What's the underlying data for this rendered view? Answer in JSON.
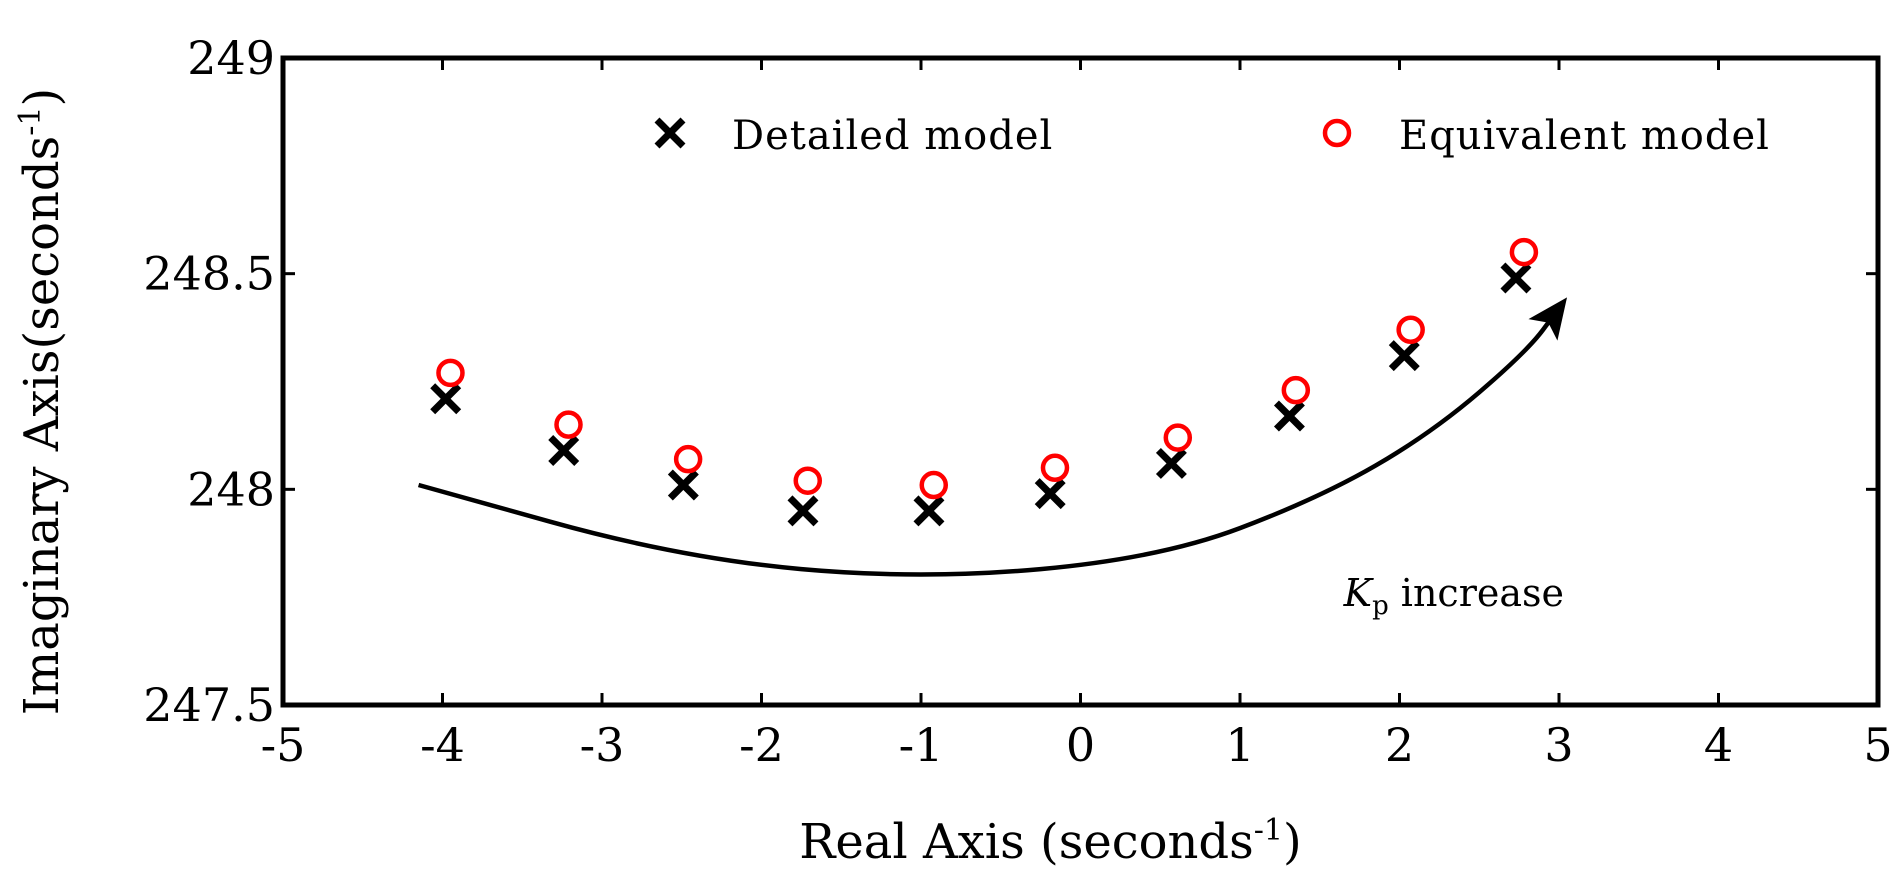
{
  "chart_data": {
    "type": "scatter",
    "title": "",
    "xlabel": "Real Axis (seconds",
    "xlabel_sup": "-1",
    "xlabel_end": ")",
    "ylabel": "Imaginary Axis(seconds",
    "ylabel_sup": "-1",
    "ylabel_end": ")",
    "xlim": [
      -5,
      5
    ],
    "ylim": [
      247.5,
      249
    ],
    "xticks": [
      "-5",
      "-4",
      "-3",
      "-2",
      "-1",
      "0",
      "1",
      "2",
      "3",
      "4",
      "5"
    ],
    "yticks": [
      "247.5",
      "248",
      "248.5",
      "249"
    ],
    "grid": false,
    "legend_position": "top",
    "series": [
      {
        "name": "Detailed model",
        "marker": "x",
        "color": "#000000",
        "x": [
          -3.98,
          -3.24,
          -2.49,
          -1.74,
          -0.95,
          -0.19,
          0.57,
          1.31,
          2.03,
          2.73
        ],
        "y": [
          248.21,
          248.09,
          248.01,
          247.95,
          247.95,
          247.99,
          248.06,
          248.17,
          248.31,
          248.49
        ]
      },
      {
        "name": "Equivalent model",
        "marker": "o",
        "color": "#ff0000",
        "x": [
          -3.95,
          -3.21,
          -2.46,
          -1.71,
          -0.92,
          -0.16,
          0.61,
          1.35,
          2.07,
          2.78
        ],
        "y": [
          248.27,
          248.15,
          248.07,
          248.02,
          248.01,
          248.05,
          248.12,
          248.23,
          248.37,
          248.55
        ]
      }
    ],
    "annotation": {
      "text_K": "K",
      "text_sub": "p",
      "text_rest": " increase",
      "arrow_x": [
        -4.15,
        -2.5,
        -1.0,
        0.5,
        1.5,
        2.2,
        2.8,
        3.0
      ],
      "arrow_y": [
        248.01,
        247.84,
        247.79,
        247.84,
        247.98,
        248.13,
        248.32,
        248.42
      ]
    }
  }
}
